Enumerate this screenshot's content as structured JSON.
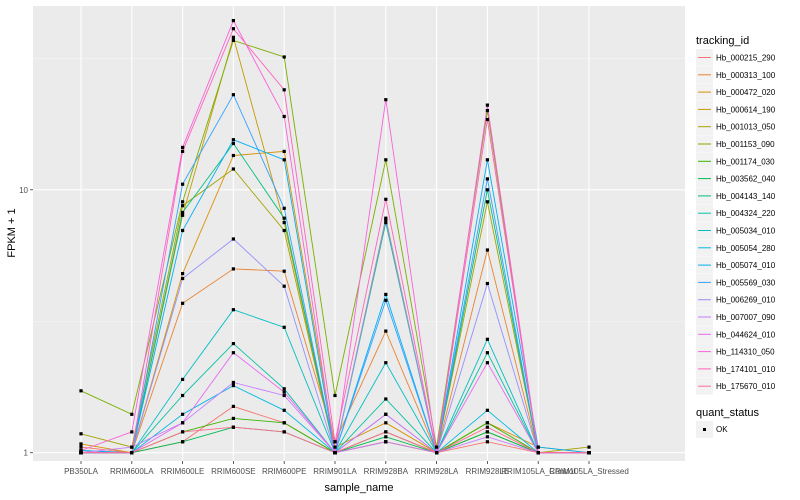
{
  "chart_data": {
    "type": "line",
    "xlabel": "sample_name",
    "ylabel": "FPKM + 1",
    "y_scale": "log10",
    "ylim": [
      0.93,
      50
    ],
    "y_ticks": [
      {
        "value": 1,
        "label": "1"
      },
      {
        "value": 10,
        "label": "10"
      }
    ],
    "grid": true,
    "categories": [
      "PB350LA",
      "RRIM600LA",
      "RRIM600LE",
      "RRIM600SE",
      "RRIM600PE",
      "RRIM901LA",
      "RRIM928BA",
      "RRIM928LA",
      "RRIM928LE",
      "RRIM105LA_Control",
      "RRIM105LA_Stressed"
    ],
    "series": [
      {
        "name": "Hb_000215_290",
        "color": "#F8766D",
        "values": [
          1.05,
          1.0,
          1.1,
          1.5,
          1.3,
          1.0,
          1.1,
          1.0,
          1.1,
          1.0,
          1.0
        ]
      },
      {
        "name": "Hb_000313_100",
        "color": "#EA8331",
        "values": [
          1.02,
          1.0,
          3.7,
          5.0,
          4.9,
          1.1,
          2.9,
          1.0,
          5.9,
          1.0,
          1.0
        ]
      },
      {
        "name": "Hb_000472_020",
        "color": "#D89000",
        "values": [
          1.08,
          1.0,
          4.8,
          13.5,
          14.0,
          1.05,
          1.3,
          1.0,
          1.3,
          1.05,
          1.0
        ]
      },
      {
        "name": "Hb_000614_190",
        "color": "#C09B00",
        "values": [
          1.0,
          1.0,
          8.0,
          38.0,
          7.5,
          1.0,
          1.1,
          1.0,
          1.2,
          1.0,
          1.0
        ]
      },
      {
        "name": "Hb_001013_050",
        "color": "#A3A500",
        "values": [
          1.18,
          1.05,
          8.7,
          12.0,
          7.0,
          1.0,
          7.8,
          1.0,
          9.0,
          1.0,
          1.05
        ]
      },
      {
        "name": "Hb_001153_090",
        "color": "#7CAE00",
        "values": [
          1.72,
          1.4,
          9.0,
          37.0,
          32.0,
          1.65,
          13.0,
          1.05,
          20.0,
          1.0,
          1.0
        ]
      },
      {
        "name": "Hb_001174_030",
        "color": "#39B600",
        "values": [
          1.0,
          1.0,
          1.2,
          1.35,
          1.3,
          1.0,
          1.2,
          1.0,
          1.3,
          1.0,
          1.0
        ]
      },
      {
        "name": "Hb_003562_040",
        "color": "#00BB4E",
        "values": [
          1.0,
          1.0,
          1.1,
          1.25,
          1.2,
          1.0,
          1.15,
          1.0,
          1.2,
          1.0,
          1.0
        ]
      },
      {
        "name": "Hb_004143_140",
        "color": "#00BF7D",
        "values": [
          1.0,
          1.0,
          8.2,
          15.0,
          7.8,
          1.0,
          7.5,
          1.0,
          10.0,
          1.0,
          1.0
        ]
      },
      {
        "name": "Hb_004324_220",
        "color": "#00C1A3",
        "values": [
          1.0,
          1.0,
          1.65,
          2.6,
          1.75,
          1.0,
          1.6,
          1.0,
          2.4,
          1.0,
          1.0
        ]
      },
      {
        "name": "Hb_005034_010",
        "color": "#00BFC4",
        "values": [
          1.0,
          1.0,
          1.9,
          3.5,
          3.0,
          1.0,
          2.2,
          1.0,
          2.7,
          1.0,
          1.0
        ]
      },
      {
        "name": "Hb_005054_280",
        "color": "#00BAE0",
        "values": [
          1.0,
          1.0,
          1.4,
          1.8,
          1.45,
          1.0,
          1.4,
          1.0,
          1.45,
          1.0,
          1.0
        ]
      },
      {
        "name": "Hb_005074_010",
        "color": "#00B0F6",
        "values": [
          1.02,
          1.0,
          7.0,
          15.5,
          13.0,
          1.0,
          4.0,
          1.0,
          13.0,
          1.05,
          1.0
        ]
      },
      {
        "name": "Hb_005569_030",
        "color": "#35A2FF",
        "values": [
          1.0,
          1.0,
          10.5,
          23.0,
          8.5,
          1.0,
          3.8,
          1.0,
          11.0,
          1.0,
          1.0
        ]
      },
      {
        "name": "Hb_006269_010",
        "color": "#9590FF",
        "values": [
          1.0,
          1.0,
          4.6,
          6.5,
          4.3,
          1.0,
          7.7,
          1.0,
          4.4,
          1.0,
          1.0
        ]
      },
      {
        "name": "Hb_007007_090",
        "color": "#C77CFF",
        "values": [
          1.0,
          1.05,
          1.3,
          1.85,
          1.65,
          1.0,
          1.1,
          1.0,
          1.15,
          1.0,
          1.0
        ]
      },
      {
        "name": "Hb_044624_010",
        "color": "#E76BF3",
        "values": [
          1.0,
          1.0,
          1.3,
          2.4,
          1.7,
          1.0,
          1.4,
          1.0,
          2.2,
          1.0,
          1.0
        ]
      },
      {
        "name": "Hb_114310_050",
        "color": "#FA62DB",
        "values": [
          1.02,
          1.2,
          14.5,
          44.0,
          19.0,
          1.0,
          22.0,
          1.0,
          21.0,
          1.0,
          1.0
        ]
      },
      {
        "name": "Hb_174101_010",
        "color": "#FF62BC",
        "values": [
          1.0,
          1.0,
          14.0,
          41.0,
          24.0,
          1.1,
          9.2,
          1.0,
          18.5,
          1.0,
          1.0
        ]
      },
      {
        "name": "Hb_175670_010",
        "color": "#FF6C91",
        "values": [
          1.0,
          1.0,
          1.2,
          1.25,
          1.2,
          1.0,
          1.2,
          1.0,
          1.25,
          1.0,
          1.0
        ]
      }
    ],
    "legend": {
      "placement": "right",
      "title": "tracking_id",
      "shape_title": "quant_status",
      "shape_entry": "OK"
    }
  }
}
